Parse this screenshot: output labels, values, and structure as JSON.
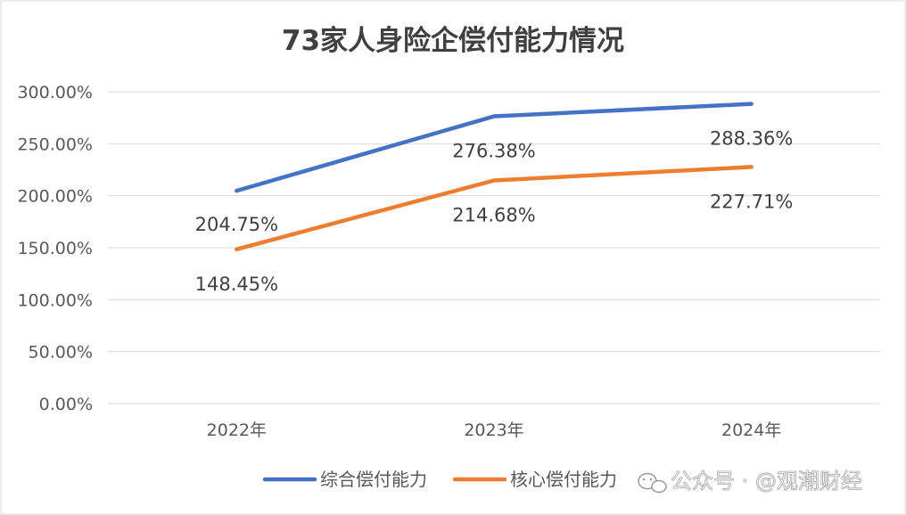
{
  "chart_data": {
    "type": "line",
    "title": "73家人身险企偿付能力情况",
    "categories": [
      "2022年",
      "2023年",
      "2024年"
    ],
    "series": [
      {
        "name": "综合偿付能力",
        "values": [
          204.75,
          276.38,
          288.36
        ],
        "labels": [
          "204.75%",
          "276.38%",
          "288.36%"
        ],
        "color": "#4472C4"
      },
      {
        "name": "核心偿付能力",
        "values": [
          148.45,
          214.68,
          227.71
        ],
        "labels": [
          "148.45%",
          "214.68%",
          "227.71%"
        ],
        "color": "#ED7D31"
      }
    ],
    "y_ticks": [
      "0.00%",
      "50.00%",
      "100.00%",
      "150.00%",
      "200.00%",
      "250.00%",
      "300.00%"
    ],
    "ylim": [
      0,
      300
    ],
    "xlabel": "",
    "ylabel": "",
    "grid": true,
    "legend_position": "bottom"
  },
  "watermark": {
    "text": "公众号 · @观潮财经",
    "icon": "wechat-icon"
  }
}
